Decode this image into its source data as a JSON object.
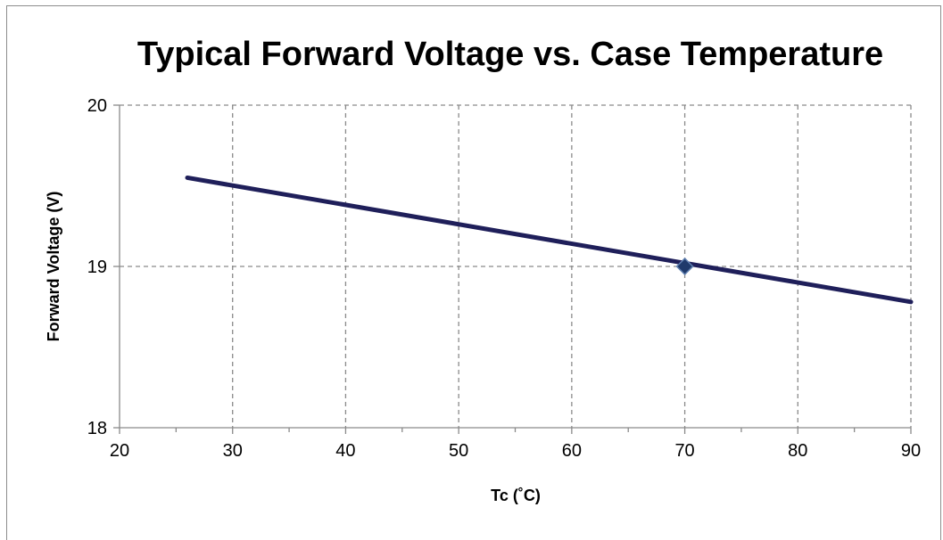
{
  "chart_data": {
    "type": "line",
    "title": "Typical Forward Voltage vs. Case Temperature",
    "xlabel": "Tc (˚C)",
    "ylabel": "Forward Voltage (V)",
    "xlim": [
      20,
      90
    ],
    "ylim": [
      18,
      20
    ],
    "x_ticks": [
      20,
      30,
      40,
      50,
      60,
      70,
      80,
      90
    ],
    "y_ticks": [
      18,
      19,
      20
    ],
    "x_tick_labels": [
      "20",
      "30",
      "40",
      "50",
      "60",
      "70",
      "80",
      "90"
    ],
    "y_tick_labels": [
      "18",
      "19",
      "20"
    ],
    "grid": true,
    "grid_style": "dashed",
    "legend": "none",
    "series": [
      {
        "x": [
          26,
          90
        ],
        "y": [
          19.55,
          18.78
        ],
        "color": "#1f1f5a"
      }
    ],
    "markers": [
      {
        "x": 70,
        "y": 19.0,
        "shape": "diamond",
        "color": "#1f3a6b"
      }
    ]
  }
}
